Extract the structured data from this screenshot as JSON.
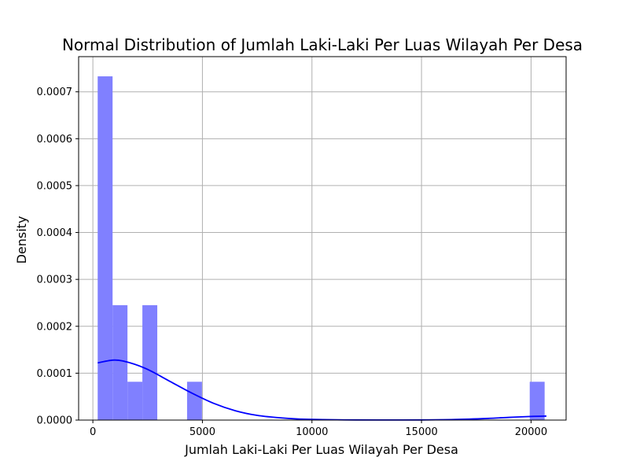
{
  "chart_data": {
    "type": "bar",
    "title": "Normal Distribution of Jumlah Laki-Laki Per Luas Wilayah Per Desa",
    "xlabel": "Jumlah Laki-Laki Per Luas Wilayah Per Desa",
    "ylabel": "Density",
    "xlim": [
      -650,
      21600
    ],
    "ylim": [
      0,
      0.000775
    ],
    "grid": true,
    "xticks": [
      0,
      5000,
      10000,
      15000,
      20000
    ],
    "yticks": [
      0.0,
      0.0001,
      0.0002,
      0.0003,
      0.0004,
      0.0005,
      0.0006,
      0.0007
    ],
    "ytick_labels": [
      "0.0000",
      "0.0001",
      "0.0002",
      "0.0003",
      "0.0004",
      "0.0005",
      "0.0006",
      "0.0007"
    ],
    "histogram": {
      "color": "#8080ff",
      "bin_start": 220,
      "bin_width": 680,
      "values": [
        0.000733,
        0.000245,
        8.17e-05,
        0.000245,
        0,
        0,
        8.17e-05,
        0,
        0,
        0,
        0,
        0,
        0,
        0,
        0,
        0,
        0,
        0,
        0,
        0,
        0,
        0,
        0,
        0,
        0,
        0,
        0,
        0,
        0,
        8.17e-05
      ]
    },
    "kde": {
      "color": "#0000ff",
      "x": [
        220,
        1000,
        1700,
        2500,
        3500,
        4500,
        5500,
        6500,
        7500,
        8500,
        9500,
        10500,
        12000,
        13500,
        15000,
        16500,
        18000,
        19000,
        20000,
        20700
      ],
      "y": [
        0.000122,
        0.000128,
        0.000122,
        0.000108,
        8.3e-05,
        5.8e-05,
        3.6e-05,
        2e-05,
        1e-05,
        5e-06,
        2e-06,
        1e-06,
        3e-07,
        2e-07,
        3e-07,
        1.2e-06,
        3.5e-06,
        5.8e-06,
        7.8e-06,
        8.5e-06
      ]
    }
  }
}
